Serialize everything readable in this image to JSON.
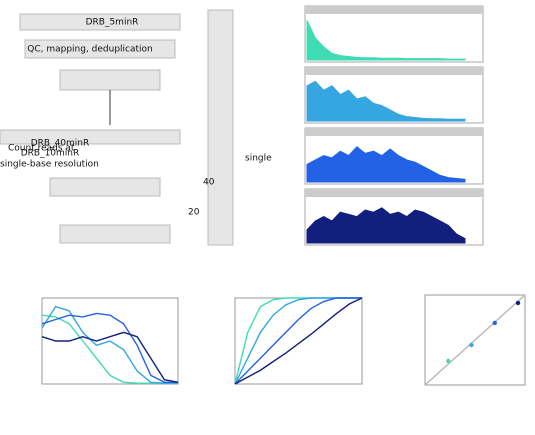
{
  "flowchart": {
    "sample_label": "DRB_5minR",
    "step_1": "QC, mapping, deduplication",
    "sample_label_2": "DRB_40minR",
    "sample_label_3": "DRB_10minR",
    "step_2_line_1": "Count reads at",
    "step_2_line_2": "single-base resolution",
    "side_label": "single",
    "axis_tick_1": "40",
    "axis_tick_2": "20"
  },
  "chart_data": [
    {
      "type": "track",
      "x": [
        0,
        1,
        2,
        3,
        4,
        5,
        6,
        7,
        8,
        9,
        10,
        11,
        12,
        13,
        14,
        15,
        16,
        17,
        18,
        19
      ],
      "xlim": [
        0,
        19
      ],
      "ylim": [
        0,
        1
      ],
      "series": [
        {
          "color": "#3fdcb4",
          "values": [
            0.9,
            0.5,
            0.3,
            0.15,
            0.1,
            0.08,
            0.06,
            0.05,
            0.05,
            0.04,
            0.04,
            0.04,
            0.03,
            0.03,
            0.03,
            0.03,
            0.03,
            0.02,
            0.02,
            0.02
          ]
        },
        {
          "color": "#36a6e0",
          "values": [
            0.8,
            0.9,
            0.7,
            0.8,
            0.6,
            0.7,
            0.5,
            0.55,
            0.4,
            0.35,
            0.25,
            0.15,
            0.1,
            0.08,
            0.06,
            0.05,
            0.05,
            0.04,
            0.04,
            0.04
          ]
        },
        {
          "color": "#2262e6",
          "values": [
            0.4,
            0.5,
            0.6,
            0.55,
            0.7,
            0.6,
            0.8,
            0.65,
            0.7,
            0.6,
            0.75,
            0.6,
            0.5,
            0.45,
            0.35,
            0.25,
            0.15,
            0.1,
            0.08,
            0.06
          ]
        },
        {
          "color": "#121f7c",
          "values": [
            0.3,
            0.5,
            0.6,
            0.5,
            0.7,
            0.65,
            0.6,
            0.75,
            0.7,
            0.8,
            0.65,
            0.7,
            0.6,
            0.75,
            0.7,
            0.6,
            0.5,
            0.4,
            0.2,
            0.1
          ]
        }
      ]
    },
    {
      "type": "line",
      "x": [
        0,
        1,
        2,
        3,
        4,
        5,
        6,
        7,
        8,
        9,
        10
      ],
      "xlim": [
        0,
        10
      ],
      "ylim": [
        0,
        1
      ],
      "series": [
        {
          "color": "#3fdcb4",
          "values": [
            0.8,
            0.78,
            0.7,
            0.5,
            0.3,
            0.1,
            0.02,
            0.01,
            0.01,
            0.01,
            0.01
          ]
        },
        {
          "color": "#36a6e0",
          "values": [
            0.65,
            0.9,
            0.85,
            0.6,
            0.45,
            0.5,
            0.4,
            0.15,
            0.02,
            0.01,
            0.01
          ]
        },
        {
          "color": "#2262e6",
          "values": [
            0.7,
            0.75,
            0.8,
            0.78,
            0.82,
            0.8,
            0.7,
            0.45,
            0.1,
            0.02,
            0.02
          ]
        },
        {
          "color": "#121f7c",
          "values": [
            0.55,
            0.5,
            0.5,
            0.55,
            0.5,
            0.55,
            0.6,
            0.55,
            0.3,
            0.05,
            0.02
          ]
        }
      ]
    },
    {
      "type": "line",
      "x": [
        0,
        1,
        2,
        3,
        4,
        5,
        6,
        7,
        8,
        9,
        10
      ],
      "xlim": [
        0,
        10
      ],
      "ylim": [
        0,
        1
      ],
      "series": [
        {
          "color": "#3fdcb4",
          "values": [
            0,
            0.6,
            0.9,
            0.98,
            1,
            1,
            1,
            1,
            1,
            1,
            1
          ]
        },
        {
          "color": "#36a6e0",
          "values": [
            0,
            0.3,
            0.6,
            0.8,
            0.92,
            0.98,
            1,
            1,
            1,
            1,
            1
          ]
        },
        {
          "color": "#2262e6",
          "values": [
            0,
            0.15,
            0.3,
            0.45,
            0.6,
            0.75,
            0.88,
            0.96,
            1,
            1,
            1
          ]
        },
        {
          "color": "#121f7c",
          "values": [
            0,
            0.08,
            0.16,
            0.26,
            0.36,
            0.47,
            0.58,
            0.7,
            0.82,
            0.93,
            1
          ]
        }
      ]
    },
    {
      "type": "scatter",
      "x": [
        1,
        2,
        3,
        4
      ],
      "values": [
        1.2,
        2.0,
        3.1,
        4.1
      ],
      "colors": [
        "#3fdcb4",
        "#36a6e0",
        "#2262e6",
        "#121f7c"
      ],
      "xlim": [
        0,
        4.3
      ],
      "ylim": [
        0,
        4.5
      ]
    }
  ]
}
